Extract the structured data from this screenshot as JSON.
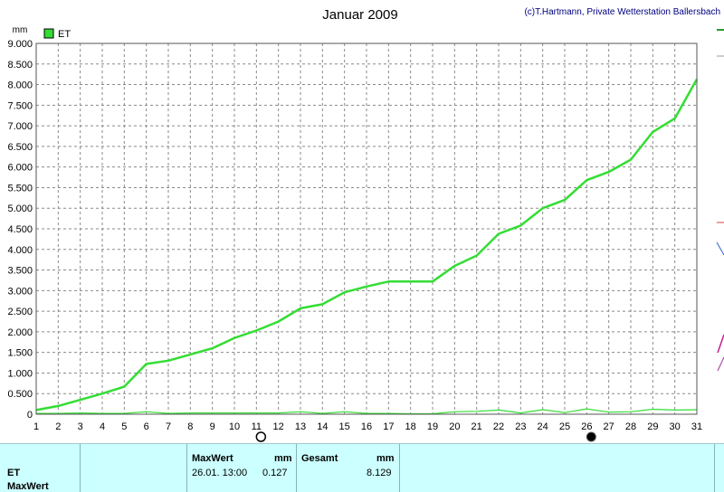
{
  "chart_data": {
    "type": "line",
    "title": "Januar 2009",
    "credit": "(c)T.Hartmann, Private Wetterstation Ballersbach",
    "ylabel": "mm",
    "xlabel": "",
    "x": [
      1,
      2,
      3,
      4,
      5,
      6,
      7,
      8,
      9,
      10,
      11,
      12,
      13,
      14,
      15,
      16,
      17,
      18,
      19,
      20,
      21,
      22,
      23,
      24,
      25,
      26,
      27,
      28,
      29,
      30,
      31
    ],
    "ylim": [
      0,
      9
    ],
    "yticks": [
      "0",
      "0.500",
      "1.000",
      "1.500",
      "2.000",
      "2.500",
      "3.000",
      "3.500",
      "4.000",
      "4.500",
      "5.000",
      "5.500",
      "6.000",
      "6.500",
      "7.000",
      "7.500",
      "8.000",
      "8.500",
      "9.000"
    ],
    "grid": true,
    "legend": "top-left",
    "series": [
      {
        "name": "ET",
        "color": "#33dd33",
        "values": [
          0.1,
          0.2,
          0.35,
          0.5,
          0.67,
          1.22,
          1.3,
          1.45,
          1.6,
          1.85,
          2.03,
          2.25,
          2.57,
          2.67,
          2.96,
          3.1,
          3.22,
          3.22,
          3.22,
          3.6,
          3.85,
          4.38,
          4.58,
          5.0,
          5.2,
          5.68,
          5.88,
          6.18,
          6.85,
          7.18,
          8.13
        ]
      },
      {
        "name": "",
        "color": "#33dd33",
        "values": [
          0.02,
          0.02,
          0.03,
          0.02,
          0.02,
          0.06,
          0.02,
          0.03,
          0.03,
          0.03,
          0.03,
          0.03,
          0.06,
          0.02,
          0.06,
          0.02,
          0.02,
          0.01,
          0.01,
          0.06,
          0.07,
          0.1,
          0.03,
          0.11,
          0.04,
          0.13,
          0.05,
          0.06,
          0.12,
          0.1,
          0.11
        ]
      }
    ]
  },
  "markers": {
    "open_circle_x": 11,
    "filled_circle_x": 26,
    "open_icon": "open-circle-icon",
    "filled_icon": "filled-circle-icon"
  },
  "panel": {
    "row_et": "ET",
    "row_maxwert": "MaxWert",
    "maxwert_header": "MaxWert",
    "maxwert_unit": "mm",
    "maxwert_date": "26.01.  13:00",
    "maxwert_value": "0.127",
    "gesamt_header": "Gesamt",
    "gesamt_unit": "mm",
    "gesamt_value": "8.129"
  }
}
